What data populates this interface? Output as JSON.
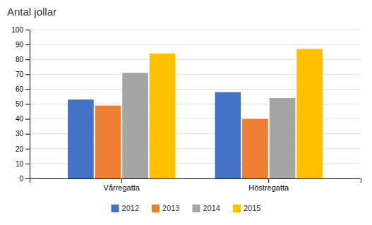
{
  "chart_data": {
    "type": "bar",
    "title": "Antal jollar",
    "categories": [
      "Vårregatta",
      "Höstregatta"
    ],
    "series": [
      {
        "name": "2012",
        "color": "#4472C4",
        "values": [
          53,
          58
        ]
      },
      {
        "name": "2013",
        "color": "#ED7D31",
        "values": [
          49,
          40
        ]
      },
      {
        "name": "2014",
        "color": "#A5A5A5",
        "values": [
          71,
          54
        ]
      },
      {
        "name": "2015",
        "color": "#FFC000",
        "values": [
          84,
          87
        ]
      }
    ],
    "ylim": [
      0,
      100
    ],
    "yticks": [
      0,
      10,
      20,
      30,
      40,
      50,
      60,
      70,
      80,
      90,
      100
    ],
    "grid": true,
    "legend": "bottom"
  }
}
